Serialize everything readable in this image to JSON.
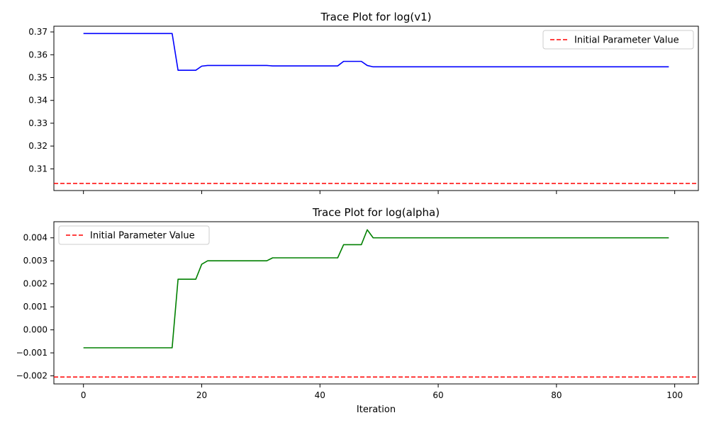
{
  "chart_data": [
    {
      "type": "line",
      "title": "Trace Plot for log(v1)",
      "xlabel": "",
      "ylabel": "",
      "xlim": [
        -5,
        104
      ],
      "ylim": [
        0.3005,
        0.3725
      ],
      "x_ticks": [
        0,
        20,
        40,
        60,
        80,
        100
      ],
      "x_tick_labels_shown": false,
      "y_ticks": [
        0.31,
        0.32,
        0.33,
        0.34,
        0.35,
        0.36,
        0.37
      ],
      "y_tick_labels": [
        "0.31",
        "0.32",
        "0.33",
        "0.34",
        "0.35",
        "0.36",
        "0.37"
      ],
      "grid": false,
      "legend_position": "top-right",
      "series": [
        {
          "color": "#0000ff",
          "style": "solid",
          "points": [
            [
              0,
              0.3693
            ],
            [
              15,
              0.3693
            ],
            [
              16,
              0.3532
            ],
            [
              19,
              0.3532
            ],
            [
              20,
              0.355
            ],
            [
              21,
              0.3553
            ],
            [
              31,
              0.3553
            ],
            [
              32,
              0.3551
            ],
            [
              43,
              0.3551
            ],
            [
              44,
              0.3571
            ],
            [
              47,
              0.3571
            ],
            [
              48,
              0.3553
            ],
            [
              49,
              0.3547
            ],
            [
              99,
              0.3547
            ]
          ]
        }
      ],
      "hlines": [
        {
          "name": "Initial Parameter Value",
          "y": 0.3036,
          "color": "#ff0000",
          "style": "dashed"
        }
      ]
    },
    {
      "type": "line",
      "title": "Trace Plot for log(alpha)",
      "xlabel": "Iteration",
      "ylabel": "",
      "xlim": [
        -5,
        104
      ],
      "ylim": [
        -0.00235,
        0.0047
      ],
      "x_ticks": [
        0,
        20,
        40,
        60,
        80,
        100
      ],
      "x_tick_labels": [
        "0",
        "20",
        "40",
        "60",
        "80",
        "100"
      ],
      "x_tick_labels_shown": true,
      "y_ticks": [
        -0.002,
        -0.001,
        0.0,
        0.001,
        0.002,
        0.003,
        0.004
      ],
      "y_tick_labels": [
        "−0.002",
        "−0.001",
        "0.000",
        "0.001",
        "0.002",
        "0.003",
        "0.004"
      ],
      "grid": false,
      "legend_position": "top-left",
      "series": [
        {
          "color": "#008000",
          "style": "solid",
          "points": [
            [
              0,
              -0.00078
            ],
            [
              15,
              -0.00078
            ],
            [
              16,
              0.0022
            ],
            [
              19,
              0.0022
            ],
            [
              20,
              0.00285
            ],
            [
              21,
              0.003
            ],
            [
              31,
              0.003
            ],
            [
              32,
              0.00313
            ],
            [
              43,
              0.00313
            ],
            [
              44,
              0.0037
            ],
            [
              47,
              0.0037
            ],
            [
              48,
              0.00435
            ],
            [
              49,
              0.004
            ],
            [
              99,
              0.004
            ]
          ]
        }
      ],
      "hlines": [
        {
          "name": "Initial Parameter Value",
          "y": -0.00205,
          "color": "#ff0000",
          "style": "dashed"
        }
      ]
    }
  ]
}
